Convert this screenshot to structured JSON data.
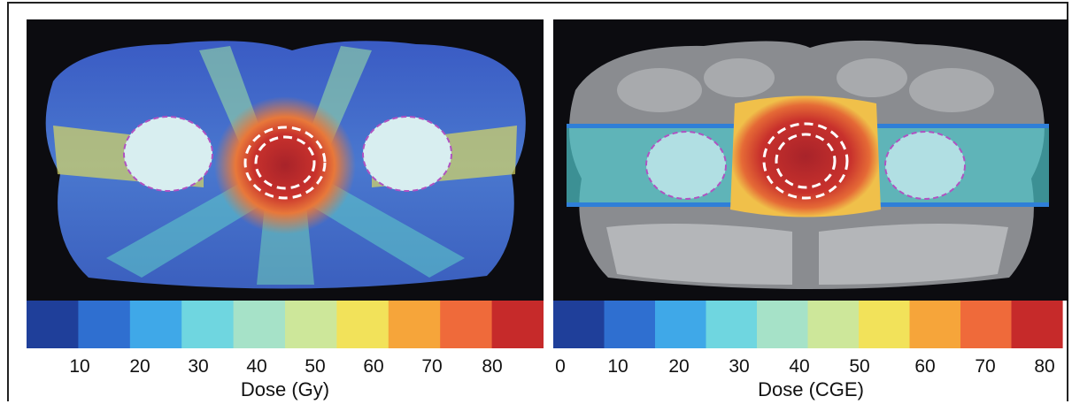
{
  "panels": [
    {
      "id": "photon",
      "axis_label": "Dose (Gy)",
      "ticks": [
        "10",
        "20",
        "30",
        "40",
        "50",
        "60",
        "70",
        "80"
      ]
    },
    {
      "id": "proton",
      "axis_label": "Dose (CGE)",
      "ticks": [
        "0",
        "10",
        "20",
        "30",
        "40",
        "50",
        "60",
        "70",
        "80"
      ]
    }
  ],
  "colormap": [
    "#1f3f9a",
    "#2f6fd0",
    "#3fa8e8",
    "#6fd6e0",
    "#a6e2c8",
    "#cde79a",
    "#f2e25a",
    "#f6a53a",
    "#ef6a3a",
    "#c62a2a"
  ]
}
